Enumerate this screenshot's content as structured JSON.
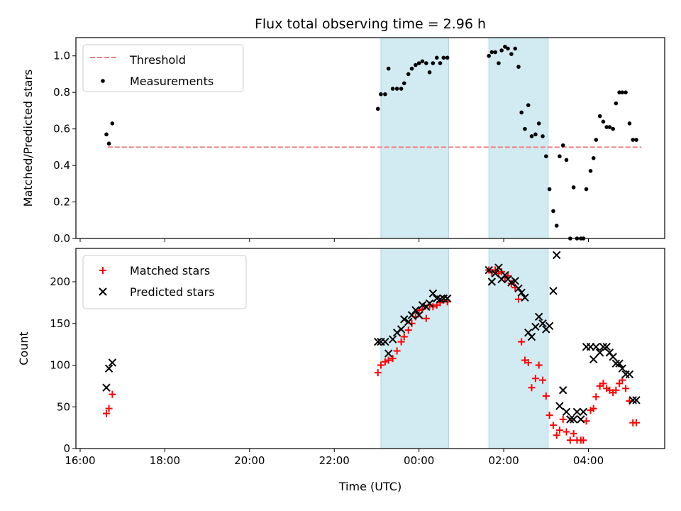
{
  "title": "Flux total observing time = 2.96 h",
  "xlabel": "Time (UTC)",
  "x_ticks": [
    "16:00",
    "18:00",
    "20:00",
    "22:00",
    "00:00",
    "02:00",
    "04:00"
  ],
  "colors": {
    "threshold": "#f08080",
    "measurement": "#000000",
    "matched": "#ff0000",
    "predicted": "#000000",
    "shade": "#add8e6"
  },
  "chart_data": [
    {
      "type": "scatter",
      "ylabel": "Matched/Predicted stars",
      "ylim": [
        0,
        1.1
      ],
      "y_ticks": [
        "0.0",
        "0.2",
        "0.4",
        "0.6",
        "0.8",
        "1.0"
      ],
      "x_unit": "hours since 16:00 UTC",
      "shaded_intervals": [
        [
          7.1,
          8.7
        ],
        [
          9.65,
          11.05
        ]
      ],
      "series": [
        {
          "name": "Threshold",
          "kind": "dashed-line",
          "x": [
            0.65,
            13.25
          ],
          "y": [
            0.5,
            0.5
          ]
        },
        {
          "name": "Measurements",
          "kind": "points",
          "x": [
            0.62,
            0.68,
            0.76,
            7.03,
            7.1,
            7.2,
            7.28,
            7.38,
            7.48,
            7.58,
            7.65,
            7.75,
            7.83,
            7.92,
            8.0,
            8.08,
            8.17,
            8.25,
            8.33,
            8.42,
            8.5,
            8.58,
            8.67,
            9.65,
            9.72,
            9.8,
            9.88,
            9.95,
            10.03,
            10.1,
            10.18,
            10.27,
            10.35,
            10.42,
            10.5,
            10.58,
            10.66,
            10.75,
            10.83,
            10.92,
            11.0,
            11.08,
            11.17,
            11.25,
            11.32,
            11.4,
            11.48,
            11.57,
            11.65,
            11.73,
            11.82,
            11.88,
            11.95,
            12.05,
            12.12,
            12.18,
            12.27,
            12.35,
            12.43,
            12.5,
            12.58,
            12.65,
            12.73,
            12.8,
            12.88,
            12.97,
            13.05,
            13.13
          ],
          "y": [
            0.57,
            0.52,
            0.63,
            0.71,
            0.79,
            0.79,
            0.93,
            0.82,
            0.82,
            0.82,
            0.85,
            0.9,
            0.93,
            0.95,
            0.96,
            0.97,
            0.96,
            0.91,
            0.96,
            0.99,
            0.96,
            0.99,
            0.99,
            1.0,
            1.02,
            1.02,
            0.96,
            1.03,
            1.05,
            1.04,
            1.01,
            1.04,
            0.94,
            0.69,
            0.6,
            0.73,
            0.56,
            0.57,
            0.63,
            0.56,
            0.45,
            0.27,
            0.15,
            0.07,
            0.45,
            0.51,
            0.43,
            0.0,
            0.28,
            0.0,
            0.0,
            0.0,
            0.27,
            0.37,
            0.44,
            0.54,
            0.67,
            0.64,
            0.61,
            0.61,
            0.6,
            0.74,
            0.8,
            0.8,
            0.8,
            0.63,
            0.54,
            0.54
          ]
        }
      ]
    },
    {
      "type": "scatter",
      "ylabel": "Count",
      "ylim": [
        0,
        240
      ],
      "y_ticks": [
        "0",
        "50",
        "100",
        "150",
        "200"
      ],
      "x_unit": "hours since 16:00 UTC",
      "shaded_intervals": [
        [
          7.1,
          8.7
        ],
        [
          9.65,
          11.05
        ]
      ],
      "series": [
        {
          "name": "Matched stars",
          "marker": "plus",
          "x": [
            0.62,
            0.68,
            0.76,
            7.03,
            7.1,
            7.2,
            7.28,
            7.38,
            7.48,
            7.58,
            7.65,
            7.75,
            7.83,
            7.92,
            8.0,
            8.08,
            8.17,
            8.25,
            8.33,
            8.42,
            8.5,
            8.58,
            8.67,
            9.65,
            9.72,
            9.8,
            9.88,
            9.95,
            10.03,
            10.1,
            10.18,
            10.27,
            10.35,
            10.42,
            10.5,
            10.58,
            10.66,
            10.75,
            10.83,
            10.92,
            11.0,
            11.08,
            11.17,
            11.25,
            11.32,
            11.4,
            11.48,
            11.57,
            11.65,
            11.73,
            11.82,
            11.88,
            11.95,
            12.05,
            12.12,
            12.18,
            12.27,
            12.35,
            12.43,
            12.5,
            12.58,
            12.65,
            12.73,
            12.8,
            12.88,
            12.97,
            13.05,
            13.13
          ],
          "y": [
            42,
            48,
            65,
            91,
            100,
            104,
            106,
            108,
            117,
            128,
            134,
            142,
            150,
            158,
            166,
            167,
            156,
            172,
            170,
            172,
            175,
            178,
            176,
            214,
            211,
            214,
            210,
            212,
            205,
            207,
            198,
            193,
            179,
            128,
            106,
            103,
            73,
            84,
            100,
            82,
            63,
            40,
            28,
            16,
            22,
            35,
            20,
            10,
            18,
            10,
            10,
            10,
            33,
            46,
            48,
            62,
            75,
            78,
            72,
            70,
            67,
            70,
            78,
            82,
            72,
            57,
            31,
            31
          ]
        },
        {
          "name": "Predicted stars",
          "marker": "x",
          "x": [
            0.62,
            0.68,
            0.76,
            7.03,
            7.1,
            7.2,
            7.28,
            7.38,
            7.48,
            7.58,
            7.65,
            7.75,
            7.83,
            7.92,
            8.0,
            8.08,
            8.17,
            8.25,
            8.33,
            8.42,
            8.5,
            8.58,
            8.67,
            9.65,
            9.72,
            9.8,
            9.88,
            9.95,
            10.03,
            10.1,
            10.18,
            10.27,
            10.35,
            10.42,
            10.5,
            10.58,
            10.66,
            10.75,
            10.83,
            10.92,
            11.0,
            11.08,
            11.17,
            11.25,
            11.32,
            11.4,
            11.48,
            11.57,
            11.65,
            11.73,
            11.82,
            11.88,
            11.95,
            12.05,
            12.12,
            12.18,
            12.27,
            12.35,
            12.43,
            12.5,
            12.58,
            12.65,
            12.73,
            12.8,
            12.88,
            12.97,
            13.05,
            13.13
          ],
          "y": [
            73,
            96,
            103,
            128,
            128,
            128,
            114,
            131,
            139,
            143,
            155,
            152,
            160,
            166,
            160,
            172,
            170,
            174,
            186,
            180,
            179,
            180,
            180,
            214,
            200,
            210,
            217,
            203,
            208,
            203,
            199,
            201,
            192,
            187,
            181,
            139,
            134,
            146,
            158,
            150,
            143,
            147,
            189,
            232,
            51,
            70,
            44,
            35,
            35,
            44,
            35,
            44,
            122,
            122,
            107,
            122,
            115,
            122,
            122,
            115,
            110,
            102,
            102,
            96,
            89,
            89,
            58,
            58
          ]
        }
      ]
    }
  ]
}
